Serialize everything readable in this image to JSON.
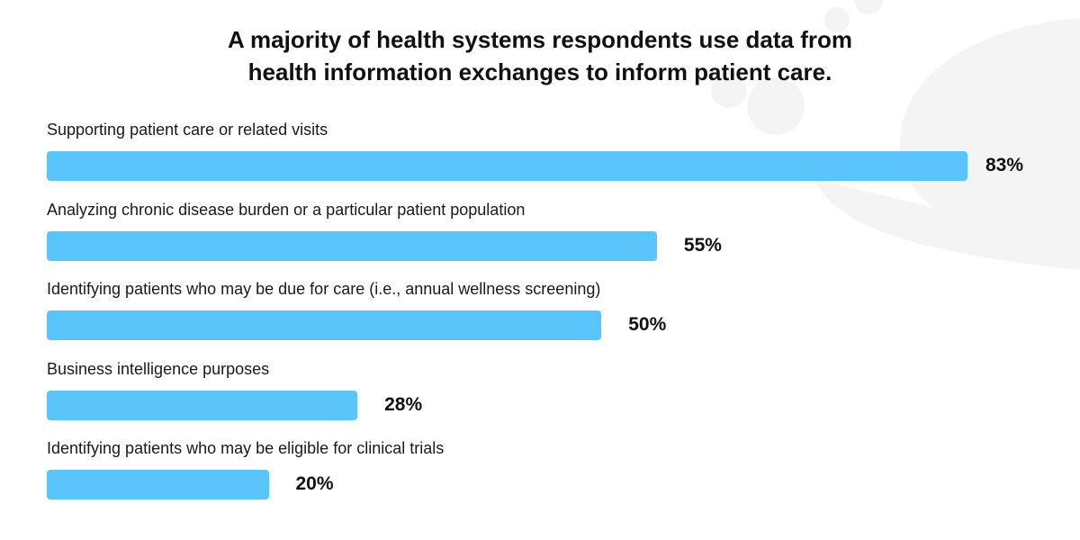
{
  "chart_data": {
    "type": "bar",
    "orientation": "horizontal",
    "title": "A majority of health systems respondents use data from health information exchanges to inform patient care.",
    "title_lines": [
      "A majority of health systems respondents use data from",
      "health information exchanges to inform patient care."
    ],
    "categories": [
      "Supporting patient care or related visits",
      "Analyzing chronic disease burden or a particular patient population",
      "Identifying patients who may be due for care (i.e., annual wellness screening)",
      "Business intelligence purposes",
      "Identifying patients who may be eligible for clinical trials"
    ],
    "values": [
      83,
      55,
      50,
      28,
      20
    ],
    "value_labels": [
      "83%",
      "55%",
      "50%",
      "28%",
      "20%"
    ],
    "unit": "%",
    "xlim": [
      0,
      100
    ],
    "grid": false,
    "legend": "none",
    "bar_color": "#5bc4fb",
    "watermark_color": "#f4f4f5"
  }
}
